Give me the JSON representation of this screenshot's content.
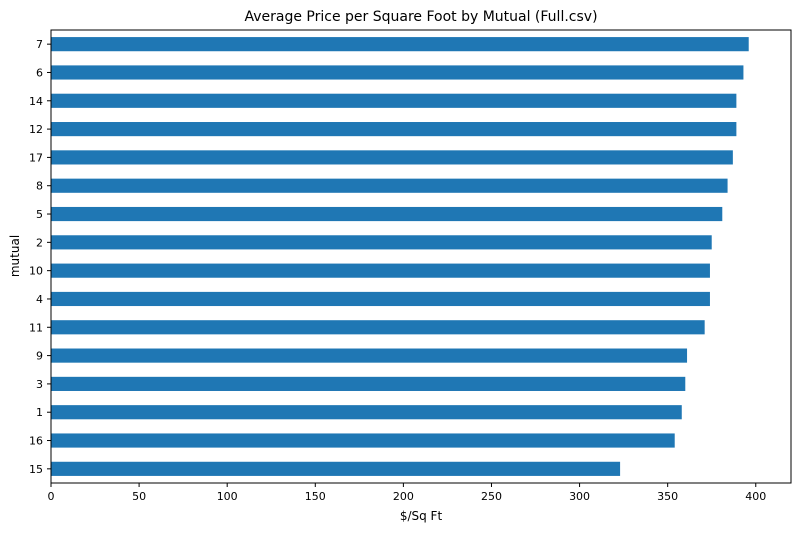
{
  "chart_data": {
    "type": "bar",
    "orientation": "horizontal",
    "title": "Average Price per Square Foot by Mutual (Full.csv)",
    "xlabel": "$/Sq Ft",
    "ylabel": "mutual",
    "xlim": [
      0,
      420
    ],
    "xticks": [
      0,
      50,
      100,
      150,
      200,
      250,
      300,
      350,
      400
    ],
    "categories": [
      "15",
      "16",
      "1",
      "3",
      "9",
      "11",
      "4",
      "10",
      "2",
      "5",
      "8",
      "17",
      "12",
      "14",
      "6",
      "7"
    ],
    "values": [
      323,
      354,
      358,
      360,
      361,
      371,
      374,
      374,
      375,
      381,
      384,
      387,
      389,
      389,
      393,
      396
    ],
    "bar_color": "#1f77b4",
    "grid": false,
    "legend": "none"
  }
}
